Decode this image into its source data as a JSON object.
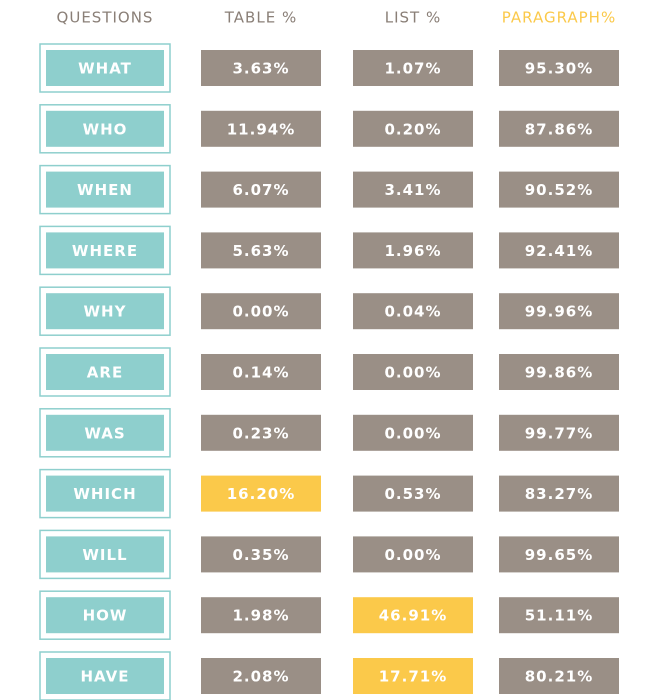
{
  "table": {
    "header": [
      "QUESTIONS",
      "TABLE %",
      "LIST %",
      "PARAGRAPH%"
    ],
    "rows": [
      [
        "WHAT",
        "3.63%",
        "1.07%",
        "95.30%"
      ],
      [
        "WHO",
        "11.94%",
        "0.20%",
        "87.86%"
      ],
      [
        "WHEN",
        "6.07%",
        "3.41%",
        "90.52%"
      ],
      [
        "WHERE",
        "5.63%",
        "1.96%",
        "92.41%"
      ],
      [
        "WHY",
        "0.00%",
        "0.04%",
        "99.96%"
      ],
      [
        "ARE",
        "0.14%",
        "0.00%",
        "99.86%"
      ],
      [
        "WAS",
        "0.23%",
        "0.00%",
        "99.77%"
      ],
      [
        "WHICH",
        "16.20%",
        "0.53%",
        "83.27%"
      ],
      [
        "WILL",
        "0.35%",
        "0.00%",
        "99.65%"
      ],
      [
        "HOW",
        "1.98%",
        "46.91%",
        "51.11%"
      ],
      [
        "HAVE",
        "2.08%",
        "17.71%",
        "80.21%"
      ]
    ],
    "header_color": "#8a7f77",
    "last_header_color": "#fbc94a",
    "question_color": "#8ecfcd",
    "cell_color": "#9a8f86",
    "highlight_color": "#fbc94a",
    "highlighted": [
      [
        7,
        1
      ],
      [
        9,
        2
      ],
      [
        10,
        2
      ]
    ]
  }
}
